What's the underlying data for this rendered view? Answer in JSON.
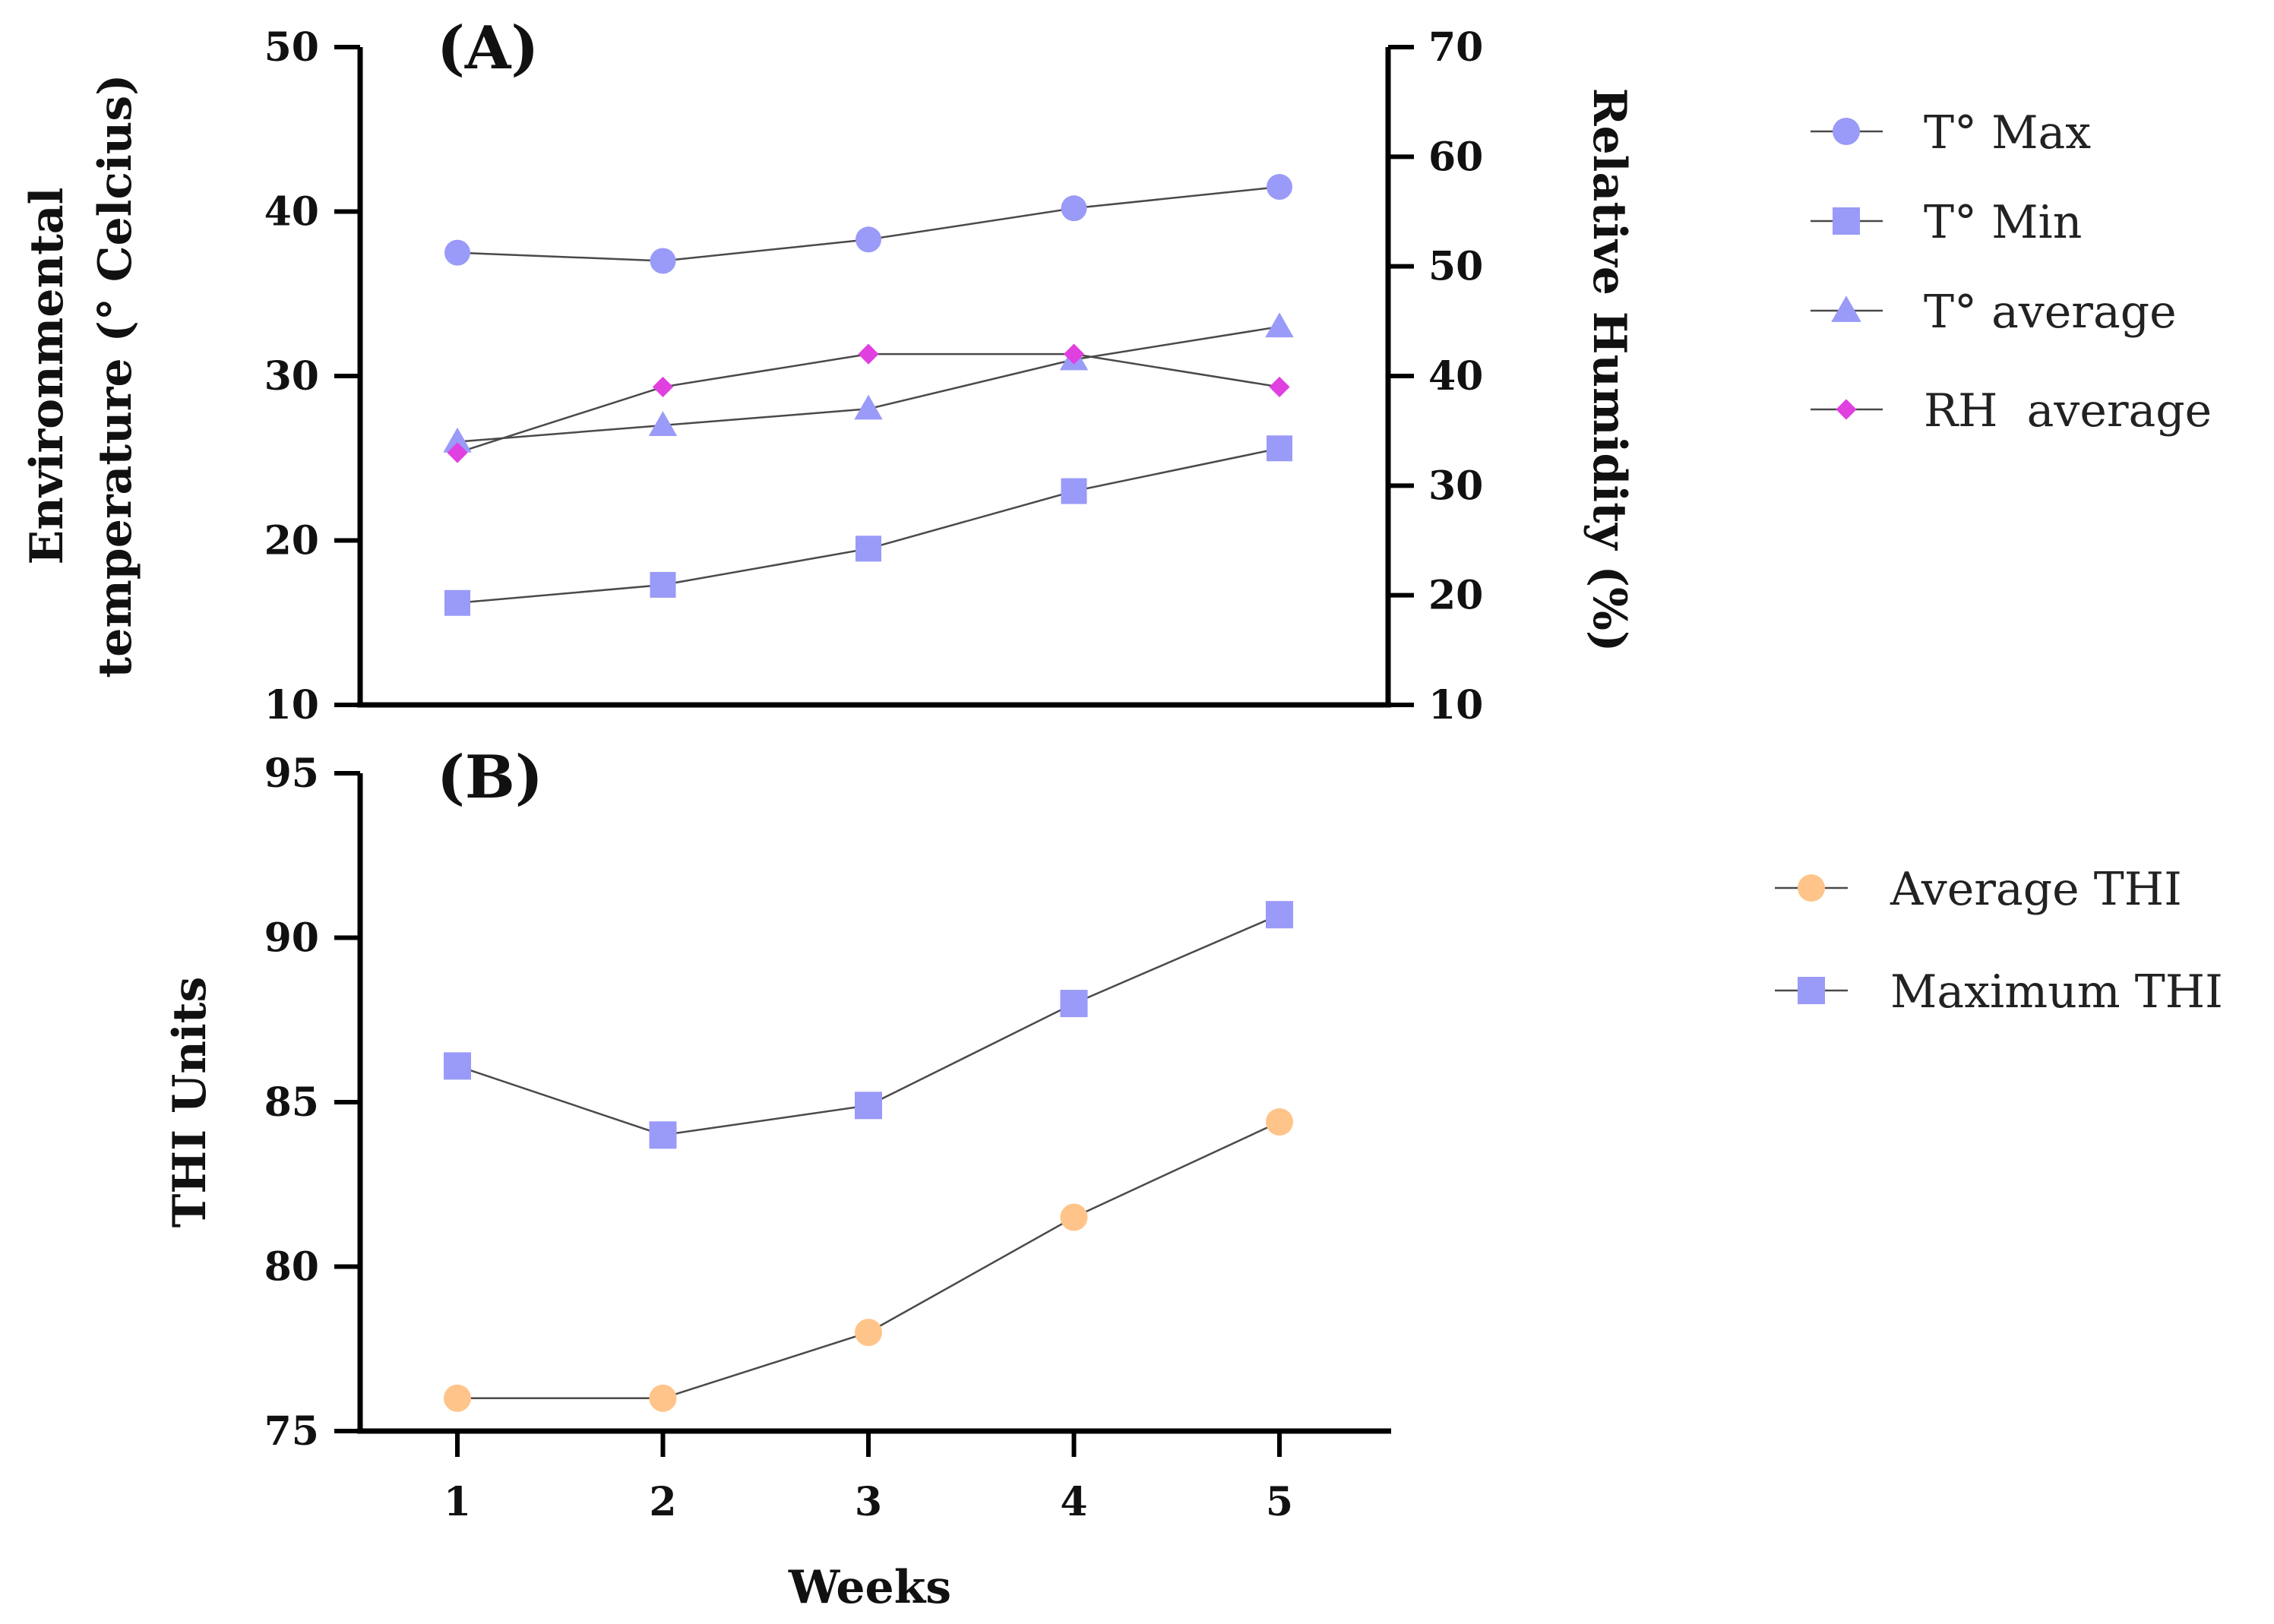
{
  "colors": {
    "blue_marker": "#9A9AF8",
    "magenta_marker": "#E040E0",
    "orange_marker": "#FFC48A",
    "line": "#4a4a4a"
  },
  "chart_data": [
    {
      "panel": "(A)",
      "type": "line",
      "xlabel": "",
      "x": [
        1,
        2,
        3,
        4,
        5
      ],
      "ylabel_left": "Environmental temperature (° Celcius)",
      "ylabel_left_lines": [
        "Environmental",
        "temperature (° Celcius)"
      ],
      "ylabel_right": "Relative Humidity (%)",
      "ylim_left": [
        10,
        50
      ],
      "yticks_left": [
        10,
        20,
        30,
        40,
        50
      ],
      "ylim_right": [
        10,
        70
      ],
      "yticks_right": [
        10,
        20,
        30,
        40,
        50,
        60,
        70
      ],
      "legend_position": "right",
      "series": [
        {
          "name": "T° Max",
          "marker": "circle",
          "axis": "left",
          "values": [
            37.5,
            37.0,
            38.3,
            40.2,
            41.5
          ]
        },
        {
          "name": "T° Min",
          "marker": "square",
          "axis": "left",
          "values": [
            16.2,
            17.3,
            19.5,
            23.0,
            25.6
          ]
        },
        {
          "name": "T° average",
          "marker": "triangle",
          "axis": "left",
          "values": [
            26.0,
            27.0,
            28.0,
            31.0,
            33.0
          ]
        },
        {
          "name": "RH  average",
          "marker": "diamond",
          "axis": "right",
          "values": [
            33.0,
            39.0,
            42.0,
            42.0,
            39.0
          ]
        }
      ]
    },
    {
      "panel": "(B)",
      "type": "line",
      "xlabel": "Weeks",
      "x": [
        1,
        2,
        3,
        4,
        5
      ],
      "xticks": [
        "1",
        "2",
        "3",
        "4",
        "5"
      ],
      "ylabel": "THI Units",
      "ylim": [
        75,
        95
      ],
      "yticks": [
        75,
        80,
        85,
        90,
        95
      ],
      "legend_position": "right",
      "series": [
        {
          "name": "Average THI",
          "marker": "circle",
          "values": [
            76.0,
            76.0,
            78.0,
            81.5,
            84.4
          ]
        },
        {
          "name": "Maximum THI",
          "marker": "square",
          "values": [
            86.1,
            84.0,
            84.9,
            88.0,
            90.7
          ]
        }
      ]
    }
  ]
}
